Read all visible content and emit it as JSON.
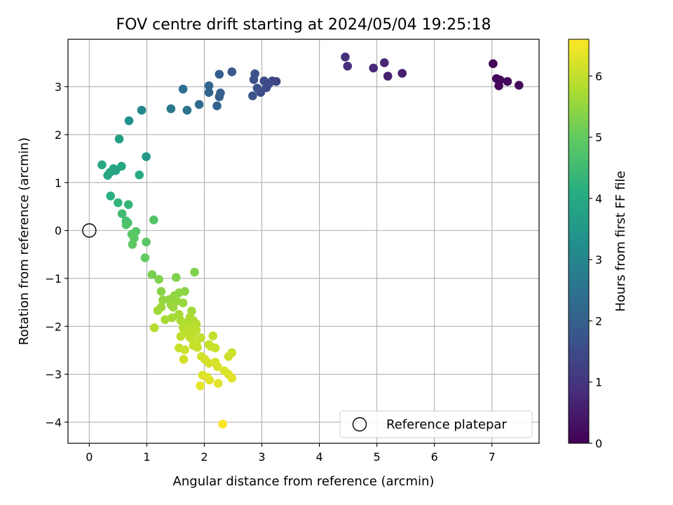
{
  "chart_data": {
    "type": "scatter",
    "title": "FOV centre drift starting at 2024/05/04 19:25:18",
    "xlabel": "Angular distance from reference (arcmin)",
    "ylabel": "Rotation from reference (arcmin)",
    "xlim": [
      -0.37,
      7.82
    ],
    "ylim": [
      -4.44,
      3.99
    ],
    "xticks": [
      0,
      1,
      2,
      3,
      4,
      5,
      6,
      7
    ],
    "yticks": [
      -4,
      -3,
      -2,
      -1,
      0,
      1,
      2,
      3
    ],
    "xtick_labels": [
      "0",
      "1",
      "2",
      "3",
      "4",
      "5",
      "6",
      "7"
    ],
    "ytick_labels": [
      "−4",
      "−3",
      "−2",
      "−1",
      "0",
      "1",
      "2",
      "3"
    ],
    "grid": true,
    "legend": {
      "placement": "lower-right",
      "label": "Reference platepar"
    },
    "reference_point": {
      "x": 0,
      "y": 0
    },
    "colorbar": {
      "label": "Hours from first FF file",
      "colormap": "viridis",
      "range": [
        0,
        6.6
      ],
      "ticks": [
        0,
        1,
        2,
        3,
        4,
        5,
        6
      ],
      "tick_labels": [
        "0",
        "1",
        "2",
        "3",
        "4",
        "5",
        "6"
      ]
    },
    "points": [
      {
        "x": 7.02,
        "y": 3.48,
        "c": 0.05
      },
      {
        "x": 7.08,
        "y": 3.17,
        "c": 0.1
      },
      {
        "x": 7.14,
        "y": 3.14,
        "c": 0.12
      },
      {
        "x": 7.27,
        "y": 3.11,
        "c": 0.15
      },
      {
        "x": 7.47,
        "y": 3.03,
        "c": 0.18
      },
      {
        "x": 7.12,
        "y": 3.02,
        "c": 0.14
      },
      {
        "x": 5.44,
        "y": 3.28,
        "c": 0.55
      },
      {
        "x": 5.19,
        "y": 3.22,
        "c": 0.6
      },
      {
        "x": 5.13,
        "y": 3.5,
        "c": 0.7
      },
      {
        "x": 4.94,
        "y": 3.39,
        "c": 0.75
      },
      {
        "x": 4.49,
        "y": 3.43,
        "c": 0.85
      },
      {
        "x": 4.45,
        "y": 3.62,
        "c": 0.9
      },
      {
        "x": 3.25,
        "y": 3.11,
        "c": 1.35
      },
      {
        "x": 3.18,
        "y": 3.12,
        "c": 1.4
      },
      {
        "x": 3.12,
        "y": 3.06,
        "c": 1.45
      },
      {
        "x": 3.08,
        "y": 2.98,
        "c": 1.5
      },
      {
        "x": 3.04,
        "y": 3.12,
        "c": 1.5
      },
      {
        "x": 2.98,
        "y": 2.88,
        "c": 1.55
      },
      {
        "x": 2.92,
        "y": 2.97,
        "c": 1.6
      },
      {
        "x": 2.88,
        "y": 3.27,
        "c": 1.65
      },
      {
        "x": 2.86,
        "y": 3.15,
        "c": 1.65
      },
      {
        "x": 2.84,
        "y": 2.81,
        "c": 1.7
      },
      {
        "x": 2.48,
        "y": 3.31,
        "c": 1.85
      },
      {
        "x": 2.26,
        "y": 3.26,
        "c": 1.95
      },
      {
        "x": 2.28,
        "y": 2.87,
        "c": 2.0
      },
      {
        "x": 2.26,
        "y": 2.79,
        "c": 2.05
      },
      {
        "x": 2.22,
        "y": 2.6,
        "c": 2.1
      },
      {
        "x": 2.08,
        "y": 3.02,
        "c": 2.1
      },
      {
        "x": 2.08,
        "y": 2.88,
        "c": 2.15
      },
      {
        "x": 1.91,
        "y": 2.63,
        "c": 2.3
      },
      {
        "x": 1.7,
        "y": 2.51,
        "c": 2.5
      },
      {
        "x": 1.63,
        "y": 2.95,
        "c": 2.4
      },
      {
        "x": 1.42,
        "y": 2.54,
        "c": 2.6
      },
      {
        "x": 0.91,
        "y": 2.51,
        "c": 3.1
      },
      {
        "x": 0.69,
        "y": 2.29,
        "c": 3.3
      },
      {
        "x": 0.52,
        "y": 1.91,
        "c": 3.7
      },
      {
        "x": 0.99,
        "y": 1.54,
        "c": 3.5
      },
      {
        "x": 0.22,
        "y": 1.37,
        "c": 3.95
      },
      {
        "x": 0.56,
        "y": 1.34,
        "c": 3.9
      },
      {
        "x": 0.42,
        "y": 1.29,
        "c": 3.85
      },
      {
        "x": 0.46,
        "y": 1.25,
        "c": 3.85
      },
      {
        "x": 0.36,
        "y": 1.21,
        "c": 3.9
      },
      {
        "x": 0.32,
        "y": 1.15,
        "c": 3.95
      },
      {
        "x": 0.87,
        "y": 1.16,
        "c": 4.0
      },
      {
        "x": 0.37,
        "y": 0.72,
        "c": 4.15
      },
      {
        "x": 0.5,
        "y": 0.58,
        "c": 4.3
      },
      {
        "x": 0.68,
        "y": 0.54,
        "c": 4.35
      },
      {
        "x": 0.57,
        "y": 0.35,
        "c": 4.5
      },
      {
        "x": 0.64,
        "y": 0.2,
        "c": 4.6
      },
      {
        "x": 0.67,
        "y": 0.16,
        "c": 4.65
      },
      {
        "x": 0.64,
        "y": 0.12,
        "c": 4.7
      },
      {
        "x": 1.12,
        "y": 0.22,
        "c": 4.8
      },
      {
        "x": 0.81,
        "y": -0.02,
        "c": 4.85
      },
      {
        "x": 0.74,
        "y": -0.08,
        "c": 4.85
      },
      {
        "x": 0.78,
        "y": -0.16,
        "c": 4.9
      },
      {
        "x": 0.75,
        "y": -0.29,
        "c": 4.95
      },
      {
        "x": 0.99,
        "y": -0.24,
        "c": 4.9
      },
      {
        "x": 0.97,
        "y": -0.57,
        "c": 5.0
      },
      {
        "x": 1.09,
        "y": -0.92,
        "c": 5.2
      },
      {
        "x": 1.21,
        "y": -1.02,
        "c": 5.3
      },
      {
        "x": 1.51,
        "y": -0.98,
        "c": 5.3
      },
      {
        "x": 1.83,
        "y": -0.87,
        "c": 5.3
      },
      {
        "x": 1.25,
        "y": -1.27,
        "c": 5.4
      },
      {
        "x": 1.66,
        "y": -1.27,
        "c": 5.4
      },
      {
        "x": 1.56,
        "y": -1.3,
        "c": 5.45
      },
      {
        "x": 1.48,
        "y": -1.36,
        "c": 5.45
      },
      {
        "x": 1.39,
        "y": -1.44,
        "c": 5.5
      },
      {
        "x": 1.28,
        "y": -1.45,
        "c": 5.5
      },
      {
        "x": 1.52,
        "y": -1.47,
        "c": 5.55
      },
      {
        "x": 1.63,
        "y": -1.51,
        "c": 5.55
      },
      {
        "x": 1.42,
        "y": -1.55,
        "c": 5.55
      },
      {
        "x": 1.46,
        "y": -1.6,
        "c": 5.6
      },
      {
        "x": 1.25,
        "y": -1.6,
        "c": 5.6
      },
      {
        "x": 1.19,
        "y": -1.67,
        "c": 5.65
      },
      {
        "x": 1.78,
        "y": -1.68,
        "c": 5.65
      },
      {
        "x": 1.56,
        "y": -1.75,
        "c": 5.7
      },
      {
        "x": 1.44,
        "y": -1.82,
        "c": 5.7
      },
      {
        "x": 1.32,
        "y": -1.86,
        "c": 5.7
      },
      {
        "x": 1.75,
        "y": -1.81,
        "c": 5.75
      },
      {
        "x": 1.59,
        "y": -1.88,
        "c": 5.75
      },
      {
        "x": 1.81,
        "y": -1.88,
        "c": 5.8
      },
      {
        "x": 1.66,
        "y": -1.93,
        "c": 5.8
      },
      {
        "x": 1.86,
        "y": -1.95,
        "c": 5.85
      },
      {
        "x": 1.72,
        "y": -1.98,
        "c": 5.85
      },
      {
        "x": 1.63,
        "y": -2.03,
        "c": 5.85
      },
      {
        "x": 1.13,
        "y": -2.03,
        "c": 5.85
      },
      {
        "x": 1.78,
        "y": -2.02,
        "c": 5.9
      },
      {
        "x": 1.7,
        "y": -2.1,
        "c": 5.9
      },
      {
        "x": 1.86,
        "y": -2.08,
        "c": 5.9
      },
      {
        "x": 1.66,
        "y": -2.13,
        "c": 5.9
      },
      {
        "x": 1.8,
        "y": -2.15,
        "c": 5.95
      },
      {
        "x": 1.59,
        "y": -2.21,
        "c": 5.95
      },
      {
        "x": 1.75,
        "y": -2.23,
        "c": 5.95
      },
      {
        "x": 2.15,
        "y": -2.2,
        "c": 6.0
      },
      {
        "x": 1.94,
        "y": -2.24,
        "c": 6.0
      },
      {
        "x": 1.8,
        "y": -2.28,
        "c": 6.0
      },
      {
        "x": 1.86,
        "y": -2.35,
        "c": 6.0
      },
      {
        "x": 1.81,
        "y": -2.4,
        "c": 6.05
      },
      {
        "x": 2.08,
        "y": -2.38,
        "c": 6.05
      },
      {
        "x": 2.11,
        "y": -2.42,
        "c": 6.05
      },
      {
        "x": 2.19,
        "y": -2.45,
        "c": 6.05
      },
      {
        "x": 1.88,
        "y": -2.44,
        "c": 6.05
      },
      {
        "x": 1.56,
        "y": -2.45,
        "c": 6.05
      },
      {
        "x": 1.66,
        "y": -2.49,
        "c": 6.1
      },
      {
        "x": 2.48,
        "y": -2.55,
        "c": 6.1
      },
      {
        "x": 2.42,
        "y": -2.63,
        "c": 6.1
      },
      {
        "x": 1.64,
        "y": -2.69,
        "c": 6.15
      },
      {
        "x": 1.95,
        "y": -2.63,
        "c": 6.15
      },
      {
        "x": 2.01,
        "y": -2.69,
        "c": 6.15
      },
      {
        "x": 2.08,
        "y": -2.77,
        "c": 6.2
      },
      {
        "x": 2.19,
        "y": -2.75,
        "c": 6.2
      },
      {
        "x": 2.23,
        "y": -2.84,
        "c": 6.2
      },
      {
        "x": 2.35,
        "y": -2.93,
        "c": 6.25
      },
      {
        "x": 2.42,
        "y": -3.0,
        "c": 6.25
      },
      {
        "x": 1.97,
        "y": -3.02,
        "c": 6.25
      },
      {
        "x": 2.05,
        "y": -3.06,
        "c": 6.3
      },
      {
        "x": 2.48,
        "y": -3.08,
        "c": 6.3
      },
      {
        "x": 2.09,
        "y": -3.12,
        "c": 6.3
      },
      {
        "x": 2.24,
        "y": -3.19,
        "c": 6.3
      },
      {
        "x": 1.93,
        "y": -3.24,
        "c": 6.35
      },
      {
        "x": 2.32,
        "y": -4.04,
        "c": 6.55
      }
    ]
  }
}
